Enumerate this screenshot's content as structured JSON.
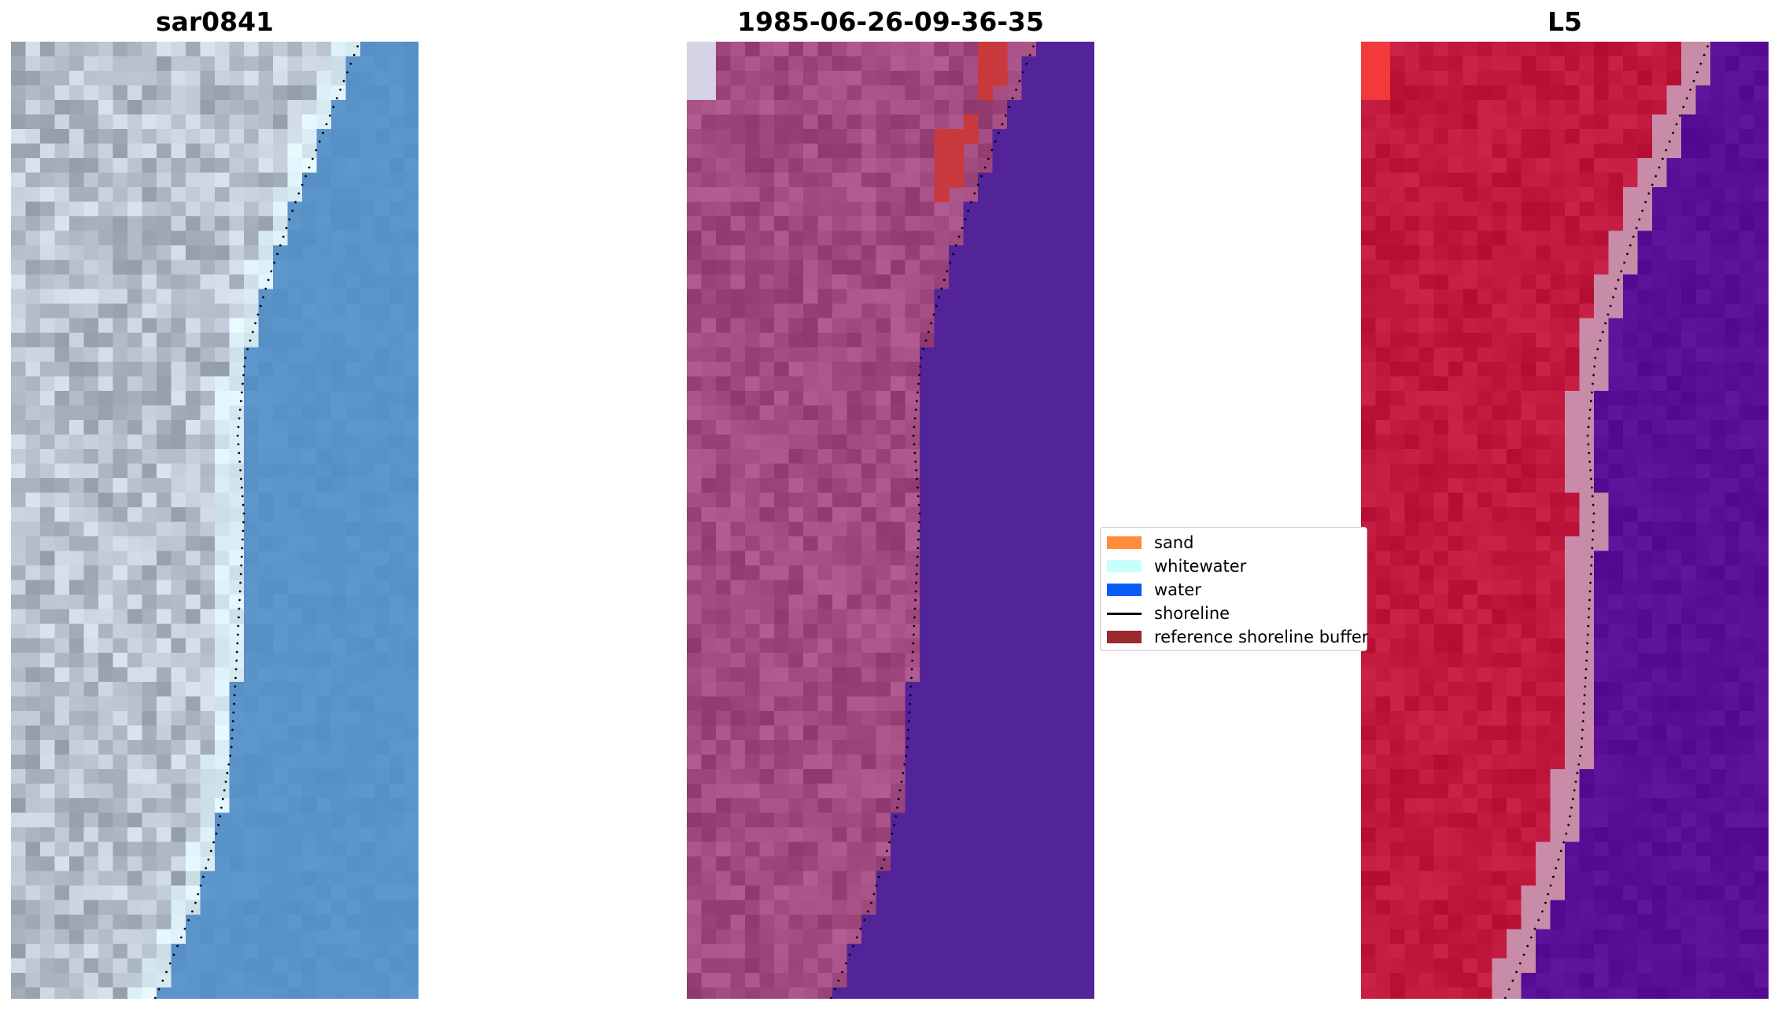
{
  "panels": {
    "rgb": {
      "title": "sar0841",
      "land_color": "#b3bccb",
      "water_color": "#5a93c8",
      "whitewater_color": "#d9ecf3"
    },
    "classified": {
      "title": "1985-06-26-09-36-35",
      "land_color": "#a04a80",
      "water_color": "#53239a",
      "buffer_color": "#c8393d"
    },
    "index": {
      "title": "L5",
      "land_color": "#c0183d",
      "water_color": "#5a0e98",
      "transition_color": "#c88ba8"
    }
  },
  "legend": {
    "items": [
      {
        "label": "sand",
        "color": "#ff8c3a",
        "kind": "patch"
      },
      {
        "label": "whitewater",
        "color": "#c8fffc",
        "kind": "patch"
      },
      {
        "label": "water",
        "color": "#0a5cf5",
        "kind": "patch"
      },
      {
        "label": "shoreline",
        "color": "#000000",
        "kind": "line"
      },
      {
        "label": "reference shoreline buffer",
        "color": "#9b2b2f",
        "kind": "patch"
      }
    ]
  }
}
